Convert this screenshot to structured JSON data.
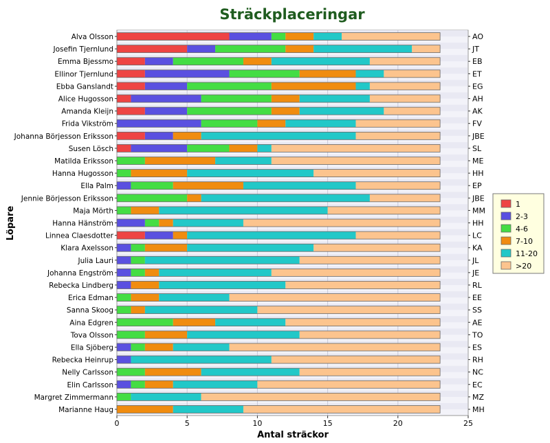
{
  "chart_data": {
    "type": "bar",
    "orientation": "horizontal",
    "stacked": true,
    "title": "Sträckplaceringar",
    "xlabel": "Antal sträckor",
    "ylabel": "Löpare",
    "xlim": [
      0,
      25
    ],
    "xticks": [
      "0",
      "5",
      "10",
      "15",
      "20",
      "25"
    ],
    "grid": true,
    "legend_position": "right",
    "categories": [
      "Alva Olsson",
      "Josefin Tjernlund",
      "Emma Bjessmo",
      "Ellinor Tjernlund",
      "Ebba Ganslandt",
      "Alice Hugosson",
      "Amanda Kleijn",
      "Frida Vikström",
      "Johanna Börjesson Eriksson",
      "Susen Lösch",
      "Matilda Eriksson",
      "Hanna Hugosson",
      "Ella Palm",
      "Jennie Börjesson Eriksson",
      "Maja Mörth",
      "Hanna Hänström",
      "Linnea Claesdotter",
      "Klara Axelsson",
      "Julia Lauri",
      "Johanna Engström",
      "Rebecka Lindberg",
      "Erica Edman",
      "Sanna Skoog",
      "Aina Edgren",
      "Tova Olsson",
      "Ella Sjöberg",
      "Rebecka Heinrup",
      "Nelly Carlsson",
      "Elin Carlsson",
      "Margret Zimmermann",
      "Marianne Haug"
    ],
    "abbreviations": [
      "AO",
      "JT",
      "EB",
      "ET",
      "EG",
      "AH",
      "AK",
      "FV",
      "JBE",
      "SL",
      "ME",
      "HH",
      "EP",
      "JBE",
      "MM",
      "HH",
      "LC",
      "KA",
      "JL",
      "JE",
      "RL",
      "EE",
      "SS",
      "AE",
      "TO",
      "ES",
      "RH",
      "NC",
      "EC",
      "MZ",
      "MH"
    ],
    "series": [
      {
        "name": "1",
        "color": "#ee4444",
        "values": [
          8,
          5,
          2,
          2,
          2,
          1,
          2,
          0,
          2,
          1,
          0,
          0,
          0,
          0,
          0,
          0,
          2,
          0,
          0,
          0,
          0,
          0,
          0,
          0,
          0,
          0,
          0,
          0,
          0,
          0,
          0
        ]
      },
      {
        "name": "2-3",
        "color": "#5a50e0",
        "values": [
          3,
          2,
          2,
          6,
          3,
          5,
          3,
          6,
          2,
          4,
          0,
          0,
          1,
          0,
          0,
          2,
          2,
          1,
          1,
          1,
          1,
          0,
          0,
          0,
          0,
          1,
          1,
          0,
          1,
          0,
          0
        ]
      },
      {
        "name": "4-6",
        "color": "#44dd44",
        "values": [
          1,
          5,
          5,
          5,
          6,
          5,
          6,
          4,
          0,
          3,
          2,
          1,
          3,
          5,
          1,
          1,
          0,
          1,
          1,
          1,
          0,
          1,
          1,
          4,
          2,
          1,
          0,
          2,
          1,
          1,
          0
        ]
      },
      {
        "name": "7-10",
        "color": "#f08c10",
        "values": [
          2,
          2,
          2,
          4,
          6,
          2,
          2,
          2,
          2,
          2,
          5,
          4,
          5,
          1,
          2,
          1,
          1,
          3,
          0,
          1,
          2,
          2,
          1,
          3,
          3,
          2,
          0,
          4,
          2,
          0,
          4
        ]
      },
      {
        "name": "11-20",
        "color": "#22c8c8",
        "values": [
          2,
          7,
          7,
          2,
          1,
          5,
          6,
          5,
          11,
          1,
          4,
          9,
          8,
          12,
          12,
          5,
          12,
          9,
          11,
          8,
          9,
          5,
          8,
          5,
          8,
          4,
          10,
          7,
          6,
          5,
          5
        ]
      },
      {
        "name": ">20",
        "color": "#fcc48e",
        "values": [
          7,
          2,
          5,
          4,
          5,
          5,
          4,
          6,
          6,
          12,
          12,
          9,
          6,
          5,
          8,
          14,
          6,
          9,
          10,
          12,
          11,
          15,
          13,
          11,
          10,
          15,
          12,
          10,
          13,
          17,
          14
        ]
      }
    ]
  }
}
